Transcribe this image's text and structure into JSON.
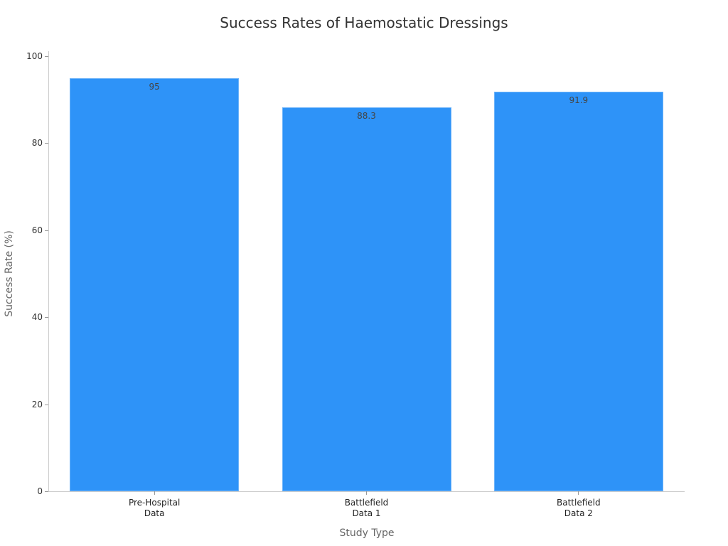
{
  "chart_data": {
    "type": "bar",
    "title": "Success Rates of Haemostatic Dressings",
    "xlabel": "Study Type",
    "ylabel": "Success Rate (%)",
    "categories": [
      "Pre-Hospital\nData",
      "Battlefield\nData 1",
      "Battlefield\nData 2"
    ],
    "values": [
      95,
      88.3,
      91.9
    ],
    "value_labels": [
      "95",
      "88.3",
      "91.9"
    ],
    "ylim": [
      0,
      100
    ],
    "yticks": [
      0,
      20,
      40,
      60,
      80,
      100
    ],
    "ytick_labels": [
      "0",
      "20",
      "40",
      "60",
      "80",
      "100"
    ],
    "grid": false,
    "legend": null,
    "bar_color": "#2e93f8"
  }
}
